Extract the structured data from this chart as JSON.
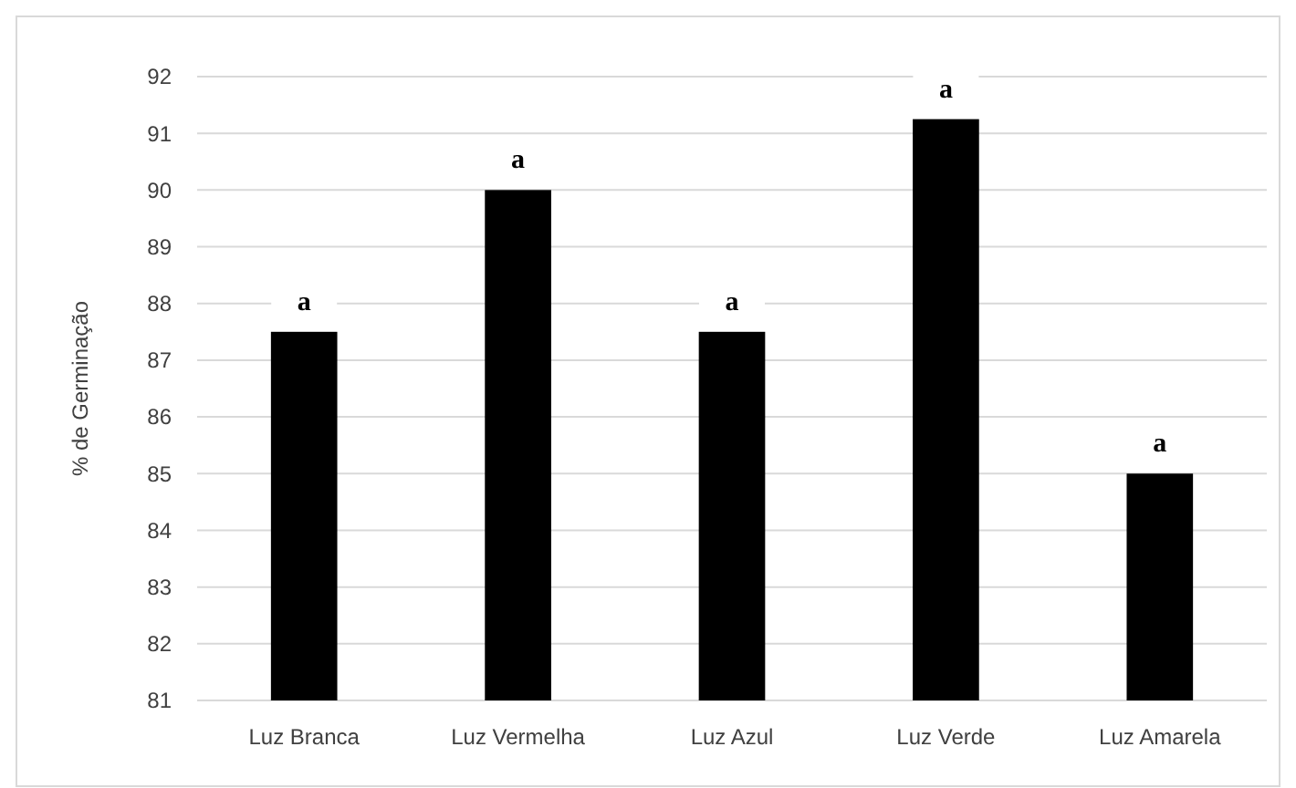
{
  "chart_data": {
    "type": "bar",
    "ylabel": "% de Germinação",
    "categories": [
      "Luz Branca",
      "Luz Vermelha",
      "Luz Azul",
      "Luz Verde",
      "Luz Amarela"
    ],
    "values": [
      87.5,
      90,
      87.5,
      91.25,
      85
    ],
    "color": "#000000",
    "ylim": [
      81,
      92
    ],
    "yticks": [
      81,
      82,
      83,
      84,
      85,
      86,
      87,
      88,
      89,
      90,
      91,
      92
    ],
    "grid": "y",
    "annotations": [
      {
        "text": "a",
        "x": "Luz Branca",
        "y": 87.5
      },
      {
        "text": "a",
        "x": "Luz Vermelha",
        "y": 90
      },
      {
        "text": "a",
        "x": "Luz Azul",
        "y": 87.5
      },
      {
        "text": "a",
        "x": "Luz Verde",
        "y": 91.25
      },
      {
        "text": "a",
        "x": "Luz Amarela",
        "y": 85
      }
    ]
  }
}
